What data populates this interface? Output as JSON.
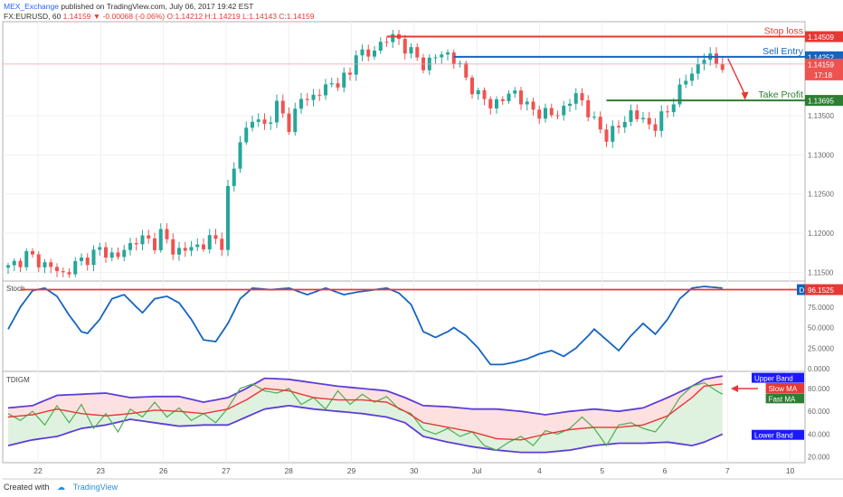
{
  "header": {
    "author": "MEX_Exchange",
    "published_text": "published on TradingView.com, July 06, 2017 19:42 EST",
    "symbol_line": "FX:EURUSD, 60",
    "last_price": "1.14159",
    "change": "-0.00068 (-0.06%)",
    "ohlc": "O:1.14212 H:1.14219 L:1.14143 C:1.14159"
  },
  "footer": {
    "created_with": "Created with",
    "brand": "TradingView"
  },
  "colors": {
    "up": "#26a69a",
    "down": "#ef5350",
    "red": "#e53935",
    "blue": "#1565c0",
    "green": "#2e7d32",
    "stoch": "#1565c0",
    "band": "#5c3fd6",
    "slow_ma": "#e53935",
    "fast_ma": "#4caf50"
  },
  "chart_data": [
    {
      "type": "candlestick",
      "x_ticks": [
        "22",
        "23",
        "26",
        "27",
        "28",
        "29",
        "30",
        "Jul",
        "4",
        "5",
        "6",
        "7",
        "10"
      ],
      "y_ticks": [
        "1.11500",
        "1.12000",
        "1.12500",
        "1.13000",
        "1.13500"
      ],
      "ylim": [
        1.114,
        1.147
      ],
      "price_path": [
        [
          0,
          1.1155
        ],
        [
          3,
          1.1172
        ],
        [
          6,
          1.116
        ],
        [
          9,
          1.1148
        ],
        [
          12,
          1.1165
        ],
        [
          15,
          1.1178
        ],
        [
          18,
          1.117
        ],
        [
          21,
          1.1193
        ],
        [
          24,
          1.1188
        ],
        [
          25,
          1.12
        ],
        [
          27,
          1.1178
        ],
        [
          30,
          1.118
        ],
        [
          33,
          1.1191
        ],
        [
          35,
          1.1188
        ],
        [
          36,
          1.1255
        ],
        [
          37,
          1.128
        ],
        [
          38,
          1.132
        ],
        [
          40,
          1.1345
        ],
        [
          42,
          1.1338
        ],
        [
          44,
          1.1362
        ],
        [
          46,
          1.1338
        ],
        [
          48,
          1.137
        ],
        [
          50,
          1.1375
        ],
        [
          52,
          1.1385
        ],
        [
          54,
          1.1395
        ],
        [
          56,
          1.14
        ],
        [
          57,
          1.1435
        ],
        [
          59,
          1.1425
        ],
        [
          61,
          1.1443
        ],
        [
          62,
          1.1449
        ],
        [
          64,
          1.1447
        ],
        [
          66,
          1.143
        ],
        [
          68,
          1.1415
        ],
        [
          70,
          1.1425
        ],
        [
          72,
          1.143
        ],
        [
          73,
          1.1422
        ],
        [
          75,
          1.1398
        ],
        [
          77,
          1.1375
        ],
        [
          79,
          1.1365
        ],
        [
          81,
          1.137
        ],
        [
          83,
          1.1382
        ],
        [
          85,
          1.136
        ],
        [
          87,
          1.1355
        ],
        [
          89,
          1.135
        ],
        [
          91,
          1.136
        ],
        [
          93,
          1.1375
        ],
        [
          94,
          1.137
        ],
        [
          96,
          1.134
        ],
        [
          98,
          1.1325
        ],
        [
          100,
          1.1335
        ],
        [
          102,
          1.1355
        ],
        [
          104,
          1.1342
        ],
        [
          106,
          1.1338
        ],
        [
          108,
          1.1355
        ],
        [
          109,
          1.1372
        ],
        [
          111,
          1.1395
        ],
        [
          113,
          1.1415
        ],
        [
          114,
          1.1425
        ],
        [
          115,
          1.1423
        ],
        [
          116,
          1.1418
        ],
        [
          117,
          1.1416
        ]
      ],
      "levels": [
        {
          "name": "Stop loss",
          "value": 1.14509,
          "label": "1.14509",
          "color": "#e53935"
        },
        {
          "name": "Sell Entry",
          "value": 1.14252,
          "label": "1.14252",
          "color": "#1565c0"
        },
        {
          "name": "Take Profit",
          "value": 1.13695,
          "label": "1.13695",
          "color": "#2e7d32"
        }
      ],
      "current_price": {
        "value": 1.14159,
        "label": "1.14159",
        "countdown": "17:18"
      }
    },
    {
      "type": "line",
      "name": "Stoch",
      "y_ticks": [
        "75.0000",
        "50.0000",
        "25.0000",
        "0.0000"
      ],
      "ylim": [
        0,
        100
      ],
      "series": [
        {
          "values_path": [
            [
              0,
              48
            ],
            [
              2,
              75
            ],
            [
              4,
              95
            ],
            [
              6,
              98
            ],
            [
              8,
              88
            ],
            [
              10,
              65
            ],
            [
              12,
              45
            ],
            [
              13,
              43
            ],
            [
              15,
              60
            ],
            [
              17,
              85
            ],
            [
              19,
              90
            ],
            [
              21,
              75
            ],
            [
              22,
              68
            ],
            [
              24,
              85
            ],
            [
              26,
              88
            ],
            [
              28,
              80
            ],
            [
              30,
              60
            ],
            [
              32,
              35
            ],
            [
              34,
              33
            ],
            [
              36,
              55
            ],
            [
              38,
              85
            ],
            [
              40,
              98
            ],
            [
              43,
              96
            ],
            [
              46,
              98
            ],
            [
              49,
              90
            ],
            [
              52,
              98
            ],
            [
              55,
              90
            ],
            [
              57,
              93
            ],
            [
              60,
              96
            ],
            [
              62,
              98
            ],
            [
              64,
              92
            ],
            [
              66,
              78
            ],
            [
              68,
              45
            ],
            [
              70,
              38
            ],
            [
              72,
              45
            ],
            [
              73,
              50
            ],
            [
              75,
              40
            ],
            [
              77,
              25
            ],
            [
              79,
              5
            ],
            [
              81,
              5
            ],
            [
              83,
              8
            ],
            [
              85,
              12
            ],
            [
              87,
              18
            ],
            [
              89,
              22
            ],
            [
              91,
              15
            ],
            [
              93,
              25
            ],
            [
              95,
              40
            ],
            [
              96,
              48
            ],
            [
              98,
              35
            ],
            [
              100,
              22
            ],
            [
              102,
              40
            ],
            [
              104,
              55
            ],
            [
              106,
              42
            ],
            [
              108,
              60
            ],
            [
              110,
              85
            ],
            [
              112,
              98
            ],
            [
              114,
              100
            ],
            [
              117,
              98
            ]
          ]
        }
      ],
      "level": {
        "value": 96.1525,
        "label": "96.1525",
        "color": "#e53935"
      },
      "marker": "D"
    },
    {
      "type": "line",
      "name": "TDIGM",
      "y_ticks": [
        "80.000",
        "60.000",
        "40.000",
        "20.000"
      ],
      "ylim": [
        15,
        95
      ],
      "series": [
        {
          "name": "Upper Band",
          "values_path": [
            [
              0,
              63
            ],
            [
              4,
              65
            ],
            [
              8,
              74
            ],
            [
              12,
              75
            ],
            [
              16,
              76
            ],
            [
              20,
              72
            ],
            [
              24,
              73
            ],
            [
              28,
              73
            ],
            [
              32,
              68
            ],
            [
              36,
              72
            ],
            [
              39,
              80
            ],
            [
              42,
              89
            ],
            [
              46,
              88
            ],
            [
              50,
              85
            ],
            [
              54,
              82
            ],
            [
              58,
              80
            ],
            [
              62,
              78
            ],
            [
              65,
              72
            ],
            [
              68,
              65
            ],
            [
              72,
              64
            ],
            [
              76,
              62
            ],
            [
              80,
              62
            ],
            [
              84,
              60
            ],
            [
              88,
              57
            ],
            [
              92,
              60
            ],
            [
              96,
              62
            ],
            [
              100,
              60
            ],
            [
              104,
              63
            ],
            [
              108,
              72
            ],
            [
              112,
              82
            ],
            [
              114,
              88
            ],
            [
              117,
              91
            ]
          ]
        },
        {
          "name": "Lower Band",
          "values_path": [
            [
              0,
              30
            ],
            [
              4,
              35
            ],
            [
              8,
              38
            ],
            [
              12,
              45
            ],
            [
              16,
              48
            ],
            [
              20,
              53
            ],
            [
              24,
              50
            ],
            [
              28,
              47
            ],
            [
              32,
              48
            ],
            [
              36,
              48
            ],
            [
              39,
              55
            ],
            [
              42,
              62
            ],
            [
              46,
              65
            ],
            [
              50,
              62
            ],
            [
              54,
              60
            ],
            [
              58,
              58
            ],
            [
              62,
              55
            ],
            [
              65,
              50
            ],
            [
              68,
              38
            ],
            [
              72,
              33
            ],
            [
              76,
              29
            ],
            [
              80,
              26
            ],
            [
              84,
              24
            ],
            [
              88,
              24
            ],
            [
              92,
              26
            ],
            [
              96,
              30
            ],
            [
              100,
              32
            ],
            [
              104,
              32
            ],
            [
              108,
              33
            ],
            [
              112,
              30
            ],
            [
              114,
              33
            ],
            [
              117,
              40
            ]
          ]
        },
        {
          "name": "Slow MA",
          "values_path": [
            [
              0,
              55
            ],
            [
              4,
              57
            ],
            [
              8,
              62
            ],
            [
              12,
              58
            ],
            [
              16,
              56
            ],
            [
              20,
              58
            ],
            [
              24,
              61
            ],
            [
              28,
              60
            ],
            [
              32,
              58
            ],
            [
              36,
              62
            ],
            [
              39,
              70
            ],
            [
              42,
              80
            ],
            [
              46,
              78
            ],
            [
              50,
              72
            ],
            [
              54,
              70
            ],
            [
              58,
              70
            ],
            [
              62,
              68
            ],
            [
              65,
              60
            ],
            [
              68,
              50
            ],
            [
              72,
              46
            ],
            [
              76,
              42
            ],
            [
              80,
              36
            ],
            [
              84,
              35
            ],
            [
              88,
              40
            ],
            [
              92,
              44
            ],
            [
              96,
              46
            ],
            [
              100,
              46
            ],
            [
              104,
              48
            ],
            [
              108,
              56
            ],
            [
              112,
              72
            ],
            [
              114,
              82
            ],
            [
              117,
              84
            ]
          ]
        },
        {
          "name": "Fast MA",
          "values_path": [
            [
              0,
              58
            ],
            [
              2,
              52
            ],
            [
              4,
              60
            ],
            [
              6,
              48
            ],
            [
              8,
              65
            ],
            [
              10,
              50
            ],
            [
              12,
              66
            ],
            [
              14,
              45
            ],
            [
              16,
              58
            ],
            [
              18,
              42
            ],
            [
              20,
              62
            ],
            [
              22,
              55
            ],
            [
              24,
              68
            ],
            [
              26,
              55
            ],
            [
              28,
              63
            ],
            [
              30,
              52
            ],
            [
              32,
              58
            ],
            [
              34,
              50
            ],
            [
              36,
              63
            ],
            [
              38,
              80
            ],
            [
              40,
              84
            ],
            [
              42,
              78
            ],
            [
              44,
              76
            ],
            [
              46,
              80
            ],
            [
              48,
              66
            ],
            [
              50,
              72
            ],
            [
              52,
              62
            ],
            [
              54,
              78
            ],
            [
              56,
              66
            ],
            [
              58,
              75
            ],
            [
              60,
              68
            ],
            [
              62,
              73
            ],
            [
              64,
              62
            ],
            [
              66,
              58
            ],
            [
              68,
              44
            ],
            [
              70,
              40
            ],
            [
              72,
              45
            ],
            [
              74,
              38
            ],
            [
              76,
              42
            ],
            [
              78,
              30
            ],
            [
              80,
              26
            ],
            [
              82,
              33
            ],
            [
              84,
              38
            ],
            [
              86,
              30
            ],
            [
              88,
              43
            ],
            [
              90,
              40
            ],
            [
              92,
              45
            ],
            [
              94,
              55
            ],
            [
              96,
              45
            ],
            [
              98,
              30
            ],
            [
              100,
              48
            ],
            [
              102,
              50
            ],
            [
              104,
              45
            ],
            [
              106,
              42
            ],
            [
              108,
              55
            ],
            [
              110,
              72
            ],
            [
              112,
              82
            ],
            [
              114,
              85
            ],
            [
              116,
              78
            ],
            [
              117,
              75
            ]
          ]
        }
      ],
      "legend": [
        "Upper Band",
        "Slow MA",
        "Fast MA",
        "Lower Band"
      ]
    }
  ]
}
